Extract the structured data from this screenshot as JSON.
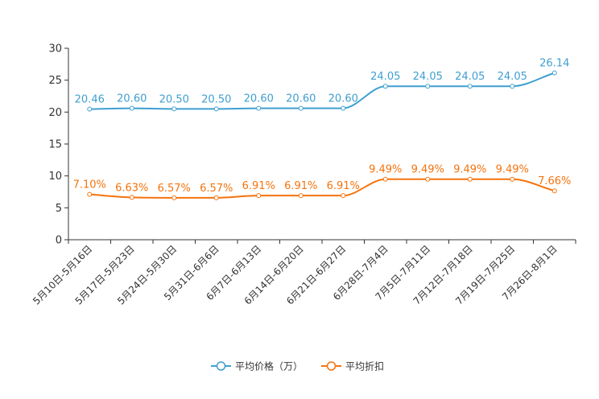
{
  "chart_data": {
    "type": "line",
    "categories": [
      "5月10日-5月16日",
      "5月17日-5月23日",
      "5月24日-5月30日",
      "5月31日-6月6日",
      "6月7日-6月13日",
      "6月14日-6月20日",
      "6月21日-6月27日",
      "6月28日-7月4日",
      "7月5日-7月11日",
      "7月12日-7月18日",
      "7月19日-7月25日",
      "7月26日-8月1日"
    ],
    "yticks": [
      "0",
      "5",
      "10",
      "15",
      "20",
      "25",
      "30"
    ],
    "ylim": [
      0,
      30
    ],
    "series": [
      {
        "name": "平均价格（万）",
        "color": "#3f9fd0",
        "values": [
          20.46,
          20.6,
          20.5,
          20.5,
          20.6,
          20.6,
          20.6,
          24.05,
          24.05,
          24.05,
          24.05,
          26.14
        ],
        "labels": [
          "20.46",
          "20.60",
          "20.50",
          "20.50",
          "20.60",
          "20.60",
          "20.60",
          "24.05",
          "24.05",
          "24.05",
          "24.05",
          "26.14"
        ]
      },
      {
        "name": "平均折扣",
        "color": "#f5730d",
        "values": [
          7.1,
          6.63,
          6.57,
          6.57,
          6.91,
          6.91,
          6.91,
          9.49,
          9.49,
          9.49,
          9.49,
          7.66
        ],
        "labels": [
          "7.10%",
          "6.63%",
          "6.57%",
          "6.57%",
          "6.91%",
          "6.91%",
          "6.91%",
          "9.49%",
          "9.49%",
          "9.49%",
          "9.49%",
          "7.66%"
        ]
      }
    ],
    "legend_position": "bottom-center"
  }
}
